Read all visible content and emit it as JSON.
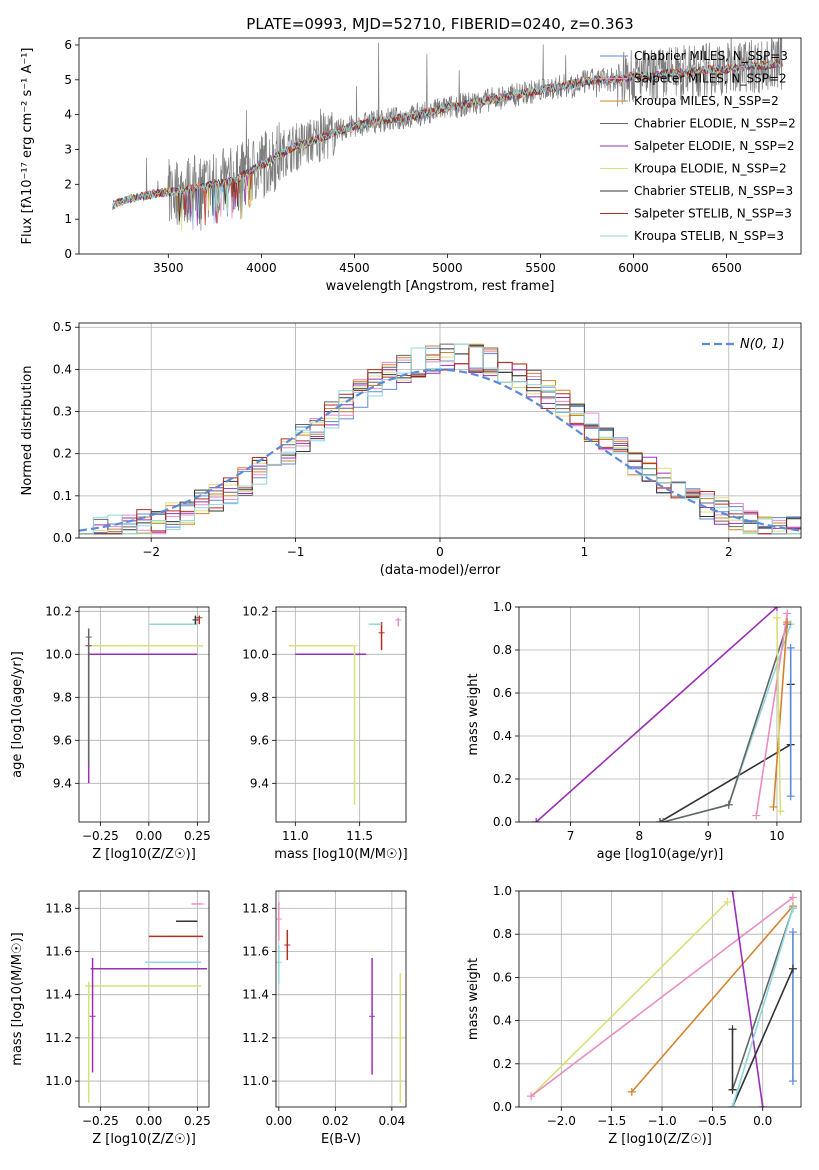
{
  "figure_title": "PLATE=0993, MJD=52710, FIBERID=0240, z=0.363",
  "colors": {
    "Chabrier MILES": "#5b8bd9",
    "Salpeter MILES": "#e98dc3",
    "Kroupa MILES": "#d6822c",
    "Chabrier ELODIE": "#666666",
    "Salpeter ELODIE": "#9a30b8",
    "Kroupa ELODIE": "#d8e07a",
    "Chabrier STELIB": "#333333",
    "Salpeter STELIB": "#b03020",
    "Kroupa STELIB": "#8fd8de",
    "observed": "#7f7f7f",
    "normal": "#5b8bd9",
    "grid": "#b0b0b0"
  },
  "chart_data": [
    {
      "id": "spectrum",
      "type": "line",
      "title": "",
      "xlabel": "wavelength [Angstrom, rest frame]",
      "ylabel": "Flux [fλ10⁻¹⁷ erg cm⁻² s⁻¹ A⁻¹]",
      "xlim": [
        3020,
        6900
      ],
      "ylim": [
        0,
        6.2
      ],
      "xticks": [
        3500,
        4000,
        4500,
        5000,
        5500,
        6000,
        6500
      ],
      "yticks": [
        0,
        1,
        2,
        3,
        4,
        5,
        6
      ],
      "grid": false,
      "legend_position": "bottom-right",
      "legend": [
        "Chabrier MILES, N_SSP=3",
        "Salpeter MILES, N_SSP=2",
        "Kroupa MILES, N_SSP=2",
        "Chabrier ELODIE, N_SSP=2",
        "Salpeter ELODIE, N_SSP=2",
        "Kroupa ELODIE, N_SSP=2",
        "Chabrier STELIB, N_SSP=3",
        "Salpeter STELIB, N_SSP=3",
        "Kroupa STELIB, N_SSP=3"
      ],
      "continuum": {
        "x": [
          3200,
          3300,
          3450,
          3550,
          3650,
          3750,
          3850,
          3950,
          4050,
          4150,
          4300,
          4450,
          4600,
          4750,
          4850,
          5000,
          5100,
          5200,
          5300,
          5400,
          5500,
          5600,
          5700,
          5800,
          5900,
          6000,
          6100,
          6200,
          6300,
          6400,
          6500,
          6600,
          6700,
          6800
        ],
        "y": [
          1.4,
          1.6,
          1.75,
          1.8,
          1.9,
          2.0,
          2.1,
          2.4,
          2.7,
          3.0,
          3.3,
          3.6,
          3.8,
          3.9,
          4.0,
          4.2,
          4.3,
          4.4,
          4.5,
          4.6,
          4.7,
          4.8,
          4.9,
          5.0,
          5.0,
          5.1,
          5.1,
          5.2,
          5.2,
          5.3,
          5.3,
          5.4,
          5.4,
          5.5
        ]
      }
    },
    {
      "id": "residuals",
      "type": "line",
      "title": "",
      "xlabel": "(data-model)/error",
      "ylabel": "Normed distribution",
      "xlim": [
        -2.5,
        2.5
      ],
      "ylim": [
        0,
        0.51
      ],
      "xticks": [
        -2,
        -1,
        0,
        1,
        2
      ],
      "yticks": [
        0.0,
        0.1,
        0.2,
        0.3,
        0.4,
        0.5
      ],
      "grid": true,
      "legend_position": "top-right",
      "legend": [
        "N(0, 1)"
      ],
      "bin_width": 0.1,
      "bin_start": -2.5
    },
    {
      "id": "age_vs_Z",
      "type": "scatter",
      "title": "",
      "xlabel": "Z [log10(Z/Z☉)]",
      "ylabel": "age  [log10(age/yr)]",
      "xlim": [
        -0.36,
        0.31
      ],
      "ylim": [
        9.22,
        10.22
      ],
      "xticks": [
        -0.25,
        0.0,
        0.25
      ],
      "yticks": [
        9.4,
        9.6,
        9.8,
        10.0,
        10.2
      ],
      "grid": true,
      "points": [
        {
          "model": "Salpeter ELODIE",
          "x": -0.05,
          "xerr": [
            0.26,
            0.3
          ],
          "y": 10.0
        },
        {
          "model": "Kroupa ELODIE",
          "x": -0.03,
          "xerr": [
            0.3,
            0.31
          ],
          "y": 10.04
        },
        {
          "model": "Salpeter ELODIE",
          "x": -0.31,
          "y": 10.04,
          "yerr": [
            0.64,
            0.0
          ]
        },
        {
          "model": "Chabrier ELODIE",
          "x": -0.31,
          "y": 10.08,
          "yerr": [
            0.6,
            0.04
          ]
        },
        {
          "model": "Kroupa STELIB",
          "x": 0.15,
          "xerr": [
            0.15,
            0.1
          ],
          "y": 10.14
        },
        {
          "model": "Salpeter STELIB",
          "x": 0.26,
          "y": 10.17,
          "yerr": [
            0.03,
            0.01
          ]
        },
        {
          "model": "Chabrier STELIB",
          "x": 0.24,
          "y": 10.16,
          "yerr": [
            0.02,
            0.02
          ]
        }
      ]
    },
    {
      "id": "age_vs_mass",
      "type": "scatter",
      "title": "",
      "xlabel": "mass [log10(M/M☉)]",
      "ylabel": "",
      "xlim": [
        10.85,
        11.86
      ],
      "ylim": [
        9.22,
        10.22
      ],
      "xticks": [
        11.0,
        11.5
      ],
      "yticks": [
        9.4,
        9.6,
        9.8,
        10.0,
        10.2
      ],
      "grid": true,
      "points": [
        {
          "model": "Kroupa ELODIE",
          "x": 11.15,
          "xerr": [
            0.2,
            0.3
          ],
          "y": 10.04
        },
        {
          "model": "Salpeter ELODIE",
          "x": 11.5,
          "xerr": [
            0.5,
            0.05
          ],
          "y": 10.0
        },
        {
          "model": "Kroupa ELODIE",
          "x": 11.46,
          "y": 10.04,
          "yerr": [
            0.74,
            0.0
          ]
        },
        {
          "model": "Salpeter STELIB",
          "x": 11.67,
          "y": 10.1,
          "yerr": [
            0.08,
            0.05
          ]
        },
        {
          "model": "Kroupa STELIB",
          "x": 11.62,
          "xerr": [
            0.05,
            0.05
          ],
          "y": 10.14
        },
        {
          "model": "Salpeter MILES",
          "x": 11.8,
          "y": 10.16,
          "yerr": [
            0.03,
            0.01
          ]
        }
      ]
    },
    {
      "id": "weight_vs_age",
      "type": "line",
      "title": "",
      "xlabel": "age  [log10(age/yr)]",
      "ylabel": "mass weight",
      "xlim": [
        6.25,
        10.35
      ],
      "ylim": [
        0,
        1.0
      ],
      "xticks": [
        7,
        8,
        9,
        10
      ],
      "yticks": [
        0.0,
        0.2,
        0.4,
        0.6,
        0.8,
        1.0
      ],
      "grid": true,
      "series": [
        {
          "model": "Salpeter ELODIE",
          "x": [
            6.5,
            10.0
          ],
          "y": [
            0.0,
            1.0
          ]
        },
        {
          "model": "Chabrier STELIB",
          "x": [
            8.3,
            10.2,
            10.2
          ],
          "y": [
            0.0,
            0.36,
            0.64
          ]
        },
        {
          "model": "Kroupa STELIB",
          "x": [
            8.35,
            9.3,
            10.2
          ],
          "y": [
            0.0,
            0.08,
            0.92
          ]
        },
        {
          "model": "Chabrier ELODIE",
          "x": [
            8.35,
            9.3,
            10.15
          ],
          "y": [
            0.0,
            0.08,
            0.92
          ]
        },
        {
          "model": "Salpeter MILES",
          "x": [
            9.7,
            10.15
          ],
          "y": [
            0.03,
            0.97
          ]
        },
        {
          "model": "Kroupa MILES",
          "x": [
            9.95,
            10.15
          ],
          "y": [
            0.07,
            0.93
          ]
        },
        {
          "model": "Kroupa ELODIE",
          "x": [
            10.05,
            10.0
          ],
          "y": [
            0.05,
            0.95
          ]
        },
        {
          "model": "Chabrier MILES",
          "x": [
            10.2,
            10.2
          ],
          "y": [
            0.12,
            0.81
          ]
        }
      ]
    },
    {
      "id": "mass_vs_Z",
      "type": "scatter",
      "title": "",
      "xlabel": "Z [log10(Z/Z☉)]",
      "ylabel": "mass [log10(M/M☉)]",
      "xlim": [
        -0.36,
        0.31
      ],
      "ylim": [
        10.88,
        11.88
      ],
      "xticks": [
        -0.25,
        0.0,
        0.25
      ],
      "yticks": [
        11.0,
        11.2,
        11.4,
        11.6,
        11.8
      ],
      "grid": true,
      "points": [
        {
          "model": "Salpeter ELODIE",
          "x": 0.0,
          "xerr": [
            0.3,
            0.3
          ],
          "y": 11.52
        },
        {
          "model": "Kroupa ELODIE",
          "x": -0.03,
          "xerr": [
            0.3,
            0.3
          ],
          "y": 11.44
        },
        {
          "model": "Kroupa ELODIE",
          "x": -0.31,
          "y": 11.44,
          "yerr": [
            0.54,
            0.02
          ]
        },
        {
          "model": "Salpeter ELODIE",
          "x": -0.29,
          "y": 11.3,
          "yerr": [
            0.26,
            0.27
          ]
        },
        {
          "model": "Salpeter STELIB",
          "x": 0.12,
          "xerr": [
            0.12,
            0.16
          ],
          "y": 11.67
        },
        {
          "model": "Kroupa STELIB",
          "x": 0.14,
          "xerr": [
            0.16,
            0.13
          ],
          "y": 11.55
        },
        {
          "model": "Chabrier STELIB",
          "x": 0.2,
          "xerr": [
            0.06,
            0.05
          ],
          "y": 11.74
        },
        {
          "model": "Salpeter MILES",
          "x": 0.27,
          "xerr": [
            0.05,
            0.0
          ],
          "y": 11.82
        }
      ]
    },
    {
      "id": "mass_vs_EBV",
      "type": "scatter",
      "title": "",
      "xlabel": "E(B-V)",
      "ylabel": "",
      "xlim": [
        -0.001,
        0.045
      ],
      "ylim": [
        10.88,
        11.88
      ],
      "xticks": [
        0.0,
        0.02,
        0.04
      ],
      "yticks": [
        11.0,
        11.2,
        11.4,
        11.6,
        11.8
      ],
      "grid": true,
      "points": [
        {
          "model": "Salpeter MILES",
          "x": 0.0,
          "y": 11.75,
          "yerr": [
            0.1,
            0.08
          ]
        },
        {
          "model": "Salpeter STELIB",
          "x": 0.003,
          "y": 11.63,
          "yerr": [
            0.07,
            0.07
          ]
        },
        {
          "model": "Kroupa STELIB",
          "x": 0.0,
          "y": 11.55,
          "yerr": [
            0.1,
            0.08
          ]
        },
        {
          "model": "Salpeter ELODIE",
          "x": 0.033,
          "y": 11.3,
          "yerr": [
            0.27,
            0.27
          ]
        },
        {
          "model": "Kroupa ELODIE",
          "x": 0.043,
          "y": 11.2,
          "yerr": [
            0.3,
            0.3
          ]
        }
      ]
    },
    {
      "id": "weight_vs_Z",
      "type": "line",
      "title": "",
      "xlabel": "Z [log10(Z/Z☉)]",
      "ylabel": "mass weight",
      "xlim": [
        -2.42,
        0.38
      ],
      "ylim": [
        0,
        1.0
      ],
      "xticks": [
        -2.0,
        -1.5,
        -1.0,
        -0.5,
        0.0
      ],
      "yticks": [
        0.0,
        0.2,
        0.4,
        0.6,
        0.8,
        1.0
      ],
      "grid": true,
      "series": [
        {
          "model": "Kroupa ELODIE",
          "x": [
            -2.3,
            -0.35
          ],
          "y": [
            0.05,
            0.95
          ]
        },
        {
          "model": "Salpeter MILES",
          "x": [
            -2.3,
            0.3
          ],
          "y": [
            0.05,
            0.97
          ]
        },
        {
          "model": "Kroupa MILES",
          "x": [
            -1.3,
            0.3
          ],
          "y": [
            0.07,
            0.93
          ]
        },
        {
          "model": "Chabrier MILES",
          "x": [
            0.3,
            0.3
          ],
          "y": [
            0.12,
            0.81
          ]
        },
        {
          "model": "Salpeter ELODIE",
          "x": [
            -0.3,
            0.0
          ],
          "y": [
            1.0,
            0.0
          ]
        },
        {
          "model": "Chabrier ELODIE",
          "x": [
            -0.3,
            0.3
          ],
          "y": [
            0.08,
            0.92
          ]
        },
        {
          "model": "Chabrier STELIB",
          "x": [
            -0.3,
            -0.3
          ],
          "y": [
            0.08,
            0.36
          ]
        },
        {
          "model": "Chabrier STELIB",
          "x": [
            -0.3,
            0.3
          ],
          "y": [
            0.0,
            0.64
          ]
        },
        {
          "model": "Kroupa STELIB",
          "x": [
            -0.3,
            0.3
          ],
          "y": [
            0.0,
            0.92
          ]
        }
      ]
    }
  ]
}
